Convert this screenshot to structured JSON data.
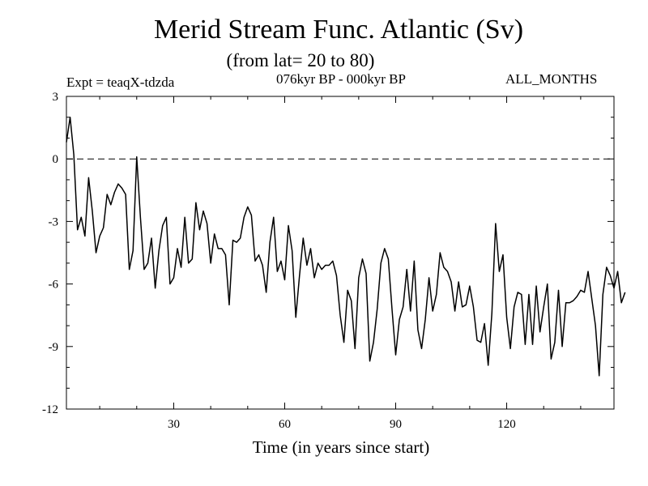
{
  "chart_data": {
    "type": "line",
    "title": "Merid Stream Func. Atlantic (Sv)",
    "subtitle": "(from lat= 20 to 80)",
    "experiment": "Expt = teaqX-tdzda",
    "period": "076kyr BP - 000kyr BP",
    "season": "ALL_MONTHS",
    "xlabel": "Time (in years since start)",
    "ylabel": "",
    "xlim": [
      1,
      149
    ],
    "ylim": [
      -12,
      3
    ],
    "x_ticks": [
      30,
      60,
      90,
      120
    ],
    "y_ticks": [
      3,
      0,
      -3,
      -6,
      -9,
      -12
    ],
    "reference_line": 0,
    "series": [
      {
        "name": "Merid Stream Func. Atlantic",
        "x_start": 1,
        "x_step": 1,
        "values": [
          0.8,
          2.0,
          0.2,
          -3.4,
          -2.8,
          -3.7,
          -0.9,
          -2.5,
          -4.5,
          -3.7,
          -3.3,
          -1.7,
          -2.2,
          -1.6,
          -1.2,
          -1.4,
          -1.7,
          -5.3,
          -4.4,
          0.1,
          -2.8,
          -5.3,
          -5.0,
          -3.8,
          -6.2,
          -4.4,
          -3.2,
          -2.8,
          -6.0,
          -5.7,
          -4.3,
          -5.2,
          -2.8,
          -5.0,
          -4.8,
          -2.1,
          -3.4,
          -2.5,
          -3.1,
          -5.0,
          -3.6,
          -4.3,
          -4.3,
          -4.6,
          -7.0,
          -3.9,
          -4.0,
          -3.8,
          -2.8,
          -2.3,
          -2.7,
          -4.9,
          -4.6,
          -5.1,
          -6.4,
          -4.0,
          -2.8,
          -5.4,
          -4.9,
          -5.8,
          -3.2,
          -4.4,
          -7.6,
          -5.6,
          -3.8,
          -5.1,
          -4.3,
          -5.7,
          -5.0,
          -5.3,
          -5.1,
          -5.1,
          -4.9,
          -5.6,
          -7.5,
          -8.8,
          -6.3,
          -6.8,
          -9.1,
          -5.7,
          -4.8,
          -5.5,
          -9.7,
          -8.8,
          -7.2,
          -5.0,
          -4.3,
          -4.8,
          -7.2,
          -9.4,
          -7.7,
          -7.1,
          -5.3,
          -7.3,
          -4.9,
          -8.2,
          -9.1,
          -7.7,
          -5.7,
          -7.3,
          -6.5,
          -4.5,
          -5.2,
          -5.4,
          -5.9,
          -7.3,
          -5.9,
          -7.1,
          -7.0,
          -6.1,
          -7.1,
          -8.7,
          -8.8,
          -7.9,
          -9.9,
          -7.4,
          -3.1,
          -5.4,
          -4.6,
          -7.6,
          -9.1,
          -7.1,
          -6.4,
          -6.5,
          -8.9,
          -6.5,
          -8.9,
          -6.1,
          -8.3,
          -7.1,
          -6.0,
          -9.6,
          -8.8,
          -6.3,
          -9.0,
          -6.9,
          -6.9,
          -6.8,
          -6.6,
          -6.3,
          -6.4,
          -5.4,
          -6.7,
          -8.0,
          -10.4,
          -6.5,
          -5.2,
          -5.6,
          -6.2,
          -5.4,
          -6.9,
          -6.4
        ]
      }
    ]
  }
}
